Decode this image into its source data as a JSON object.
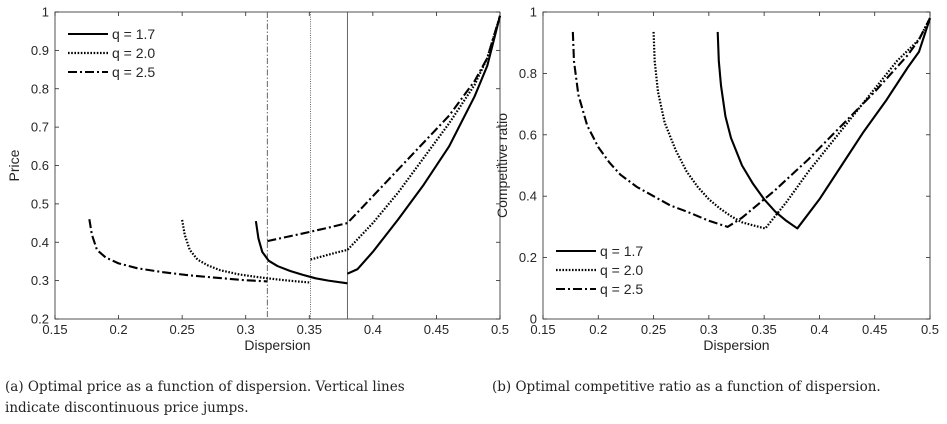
{
  "figure": {
    "caption_a": "(a) Optimal price as a function of dispersion. Vertical lines indicate discontinuous price jumps.",
    "caption_b": "(b) Optimal competitive ratio as a function of dispersion."
  },
  "chart_data": [
    {
      "type": "line",
      "xlabel": "Dispersion",
      "ylabel": "Price",
      "xlim": [
        0.15,
        0.5
      ],
      "ylim": [
        0.2,
        1
      ],
      "xticks": [
        0.15,
        0.2,
        0.25,
        0.3,
        0.35,
        0.4,
        0.45,
        0.5
      ],
      "yticks": [
        0.2,
        0.3,
        0.4,
        0.5,
        0.6,
        0.7,
        0.8,
        0.9,
        1
      ],
      "grid": false,
      "legend_position": "top-left",
      "vertical_lines": [
        {
          "x": 0.317,
          "series": "q = 2.5"
        },
        {
          "x": 0.351,
          "series": "q = 2.0"
        },
        {
          "x": 0.38,
          "series": "q = 1.7"
        }
      ],
      "series": [
        {
          "name": "q = 1.7",
          "dash": "solid",
          "segments": [
            {
              "x": [
                0.308,
                0.31,
                0.313,
                0.318,
                0.325,
                0.335,
                0.345,
                0.355,
                0.365,
                0.38
              ],
              "y": [
                0.455,
                0.41,
                0.375,
                0.352,
                0.338,
                0.325,
                0.315,
                0.306,
                0.3,
                0.293
              ]
            },
            {
              "x": [
                0.38,
                0.388,
                0.4,
                0.42,
                0.44,
                0.46,
                0.48,
                0.49,
                0.5
              ],
              "y": [
                0.318,
                0.33,
                0.375,
                0.46,
                0.55,
                0.65,
                0.78,
                0.86,
                0.99
              ]
            }
          ]
        },
        {
          "name": "q = 2.0",
          "dash": "dotted",
          "segments": [
            {
              "x": [
                0.25,
                0.252,
                0.256,
                0.262,
                0.27,
                0.28,
                0.295,
                0.31,
                0.325,
                0.34,
                0.351
              ],
              "y": [
                0.458,
                0.42,
                0.38,
                0.355,
                0.34,
                0.327,
                0.316,
                0.309,
                0.303,
                0.298,
                0.295
              ]
            },
            {
              "x": [
                0.351,
                0.37,
                0.38,
                0.4,
                0.42,
                0.44,
                0.46,
                0.48,
                0.49,
                0.5
              ],
              "y": [
                0.355,
                0.372,
                0.38,
                0.45,
                0.53,
                0.62,
                0.71,
                0.81,
                0.88,
                0.99
              ]
            }
          ]
        },
        {
          "name": "q = 2.5",
          "dash": "dashdot",
          "segments": [
            {
              "x": [
                0.177,
                0.179,
                0.183,
                0.19,
                0.2,
                0.215,
                0.235,
                0.255,
                0.275,
                0.3,
                0.317
              ],
              "y": [
                0.46,
                0.42,
                0.38,
                0.36,
                0.345,
                0.332,
                0.322,
                0.314,
                0.308,
                0.301,
                0.298
              ]
            },
            {
              "x": [
                0.317,
                0.345,
                0.365,
                0.38,
                0.4,
                0.42,
                0.44,
                0.46,
                0.48,
                0.49,
                0.5
              ],
              "y": [
                0.403,
                0.423,
                0.438,
                0.45,
                0.52,
                0.59,
                0.66,
                0.73,
                0.82,
                0.88,
                0.99
              ]
            }
          ]
        }
      ]
    },
    {
      "type": "line",
      "xlabel": "Dispersion",
      "ylabel": "Competitive ratio",
      "xlim": [
        0.15,
        0.5
      ],
      "ylim": [
        0,
        1
      ],
      "xticks": [
        0.15,
        0.2,
        0.25,
        0.3,
        0.35,
        0.4,
        0.45,
        0.5
      ],
      "yticks": [
        0,
        0.2,
        0.4,
        0.6,
        0.8,
        1
      ],
      "grid": false,
      "legend_position": "bottom-left",
      "series": [
        {
          "name": "q = 1.7",
          "dash": "solid",
          "segments": [
            {
              "x": [
                0.308,
                0.309,
                0.311,
                0.315,
                0.32,
                0.33,
                0.34,
                0.35,
                0.36,
                0.37,
                0.38,
                0.4,
                0.42,
                0.44,
                0.46,
                0.48,
                0.49,
                0.5
              ],
              "y": [
                0.935,
                0.84,
                0.76,
                0.66,
                0.59,
                0.5,
                0.44,
                0.39,
                0.35,
                0.32,
                0.295,
                0.39,
                0.5,
                0.61,
                0.71,
                0.82,
                0.87,
                0.98
              ]
            }
          ]
        },
        {
          "name": "q = 2.0",
          "dash": "dotted",
          "segments": [
            {
              "x": [
                0.25,
                0.251,
                0.254,
                0.26,
                0.27,
                0.28,
                0.29,
                0.3,
                0.31,
                0.32,
                0.33,
                0.34,
                0.351,
                0.37,
                0.39,
                0.41,
                0.43,
                0.45,
                0.47,
                0.49,
                0.5
              ],
              "y": [
                0.935,
                0.84,
                0.74,
                0.64,
                0.55,
                0.48,
                0.43,
                0.39,
                0.36,
                0.335,
                0.315,
                0.305,
                0.295,
                0.38,
                0.48,
                0.57,
                0.66,
                0.75,
                0.84,
                0.91,
                0.98
              ]
            }
          ]
        },
        {
          "name": "q = 2.5",
          "dash": "dashdot",
          "segments": [
            {
              "x": [
                0.177,
                0.178,
                0.182,
                0.19,
                0.2,
                0.21,
                0.22,
                0.235,
                0.25,
                0.265,
                0.28,
                0.3,
                0.317,
                0.33,
                0.36,
                0.39,
                0.42,
                0.45,
                0.48,
                0.49,
                0.5
              ],
              "y": [
                0.935,
                0.84,
                0.73,
                0.63,
                0.56,
                0.51,
                0.47,
                0.43,
                0.4,
                0.37,
                0.35,
                0.32,
                0.3,
                0.33,
                0.42,
                0.52,
                0.63,
                0.74,
                0.86,
                0.91,
                0.98
              ]
            }
          ]
        }
      ]
    }
  ]
}
